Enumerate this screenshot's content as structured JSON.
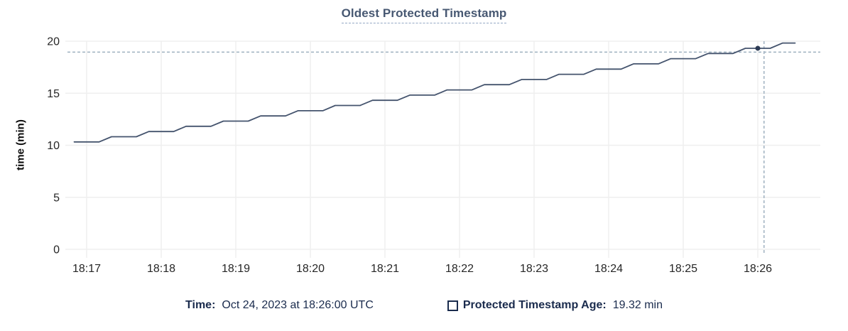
{
  "chart": {
    "title": "Oldest Protected Timestamp"
  },
  "tooltip": {
    "time_label": "Time:",
    "time_value": "Oct 24, 2023 at 18:26:00 UTC",
    "series_label": "Protected Timestamp Age:",
    "series_value": "19.32 min"
  },
  "colors": {
    "line": "#44536d",
    "dot": "#2c3a54",
    "crosshair": "#9fb1c0",
    "grid": "#efefef",
    "title": "#475872",
    "legend_text": "#1a2b4d",
    "tick_text": "#262626"
  },
  "chart_data": {
    "type": "line",
    "title": "Oldest Protected Timestamp",
    "xlabel": "",
    "ylabel": "time (min)",
    "ylim": [
      0,
      20
    ],
    "y_ticks": [
      0,
      5,
      10,
      15,
      20
    ],
    "x_ticks": [
      "18:17",
      "18:18",
      "18:19",
      "18:20",
      "18:21",
      "18:22",
      "18:23",
      "18:24",
      "18:25",
      "18:26"
    ],
    "xlim": [
      "18:16:45",
      "18:26:50"
    ],
    "grid": true,
    "legend_position": "bottom",
    "series": [
      {
        "name": "Protected Timestamp Age",
        "unit": "min",
        "points": [
          [
            "18:16:50",
            10.32
          ],
          [
            "18:17:00",
            10.32
          ],
          [
            "18:17:10",
            10.32
          ],
          [
            "18:17:20",
            10.82
          ],
          [
            "18:17:30",
            10.82
          ],
          [
            "18:17:40",
            10.82
          ],
          [
            "18:17:50",
            11.32
          ],
          [
            "18:18:00",
            11.32
          ],
          [
            "18:18:10",
            11.32
          ],
          [
            "18:18:20",
            11.82
          ],
          [
            "18:18:30",
            11.82
          ],
          [
            "18:18:40",
            11.82
          ],
          [
            "18:18:50",
            12.32
          ],
          [
            "18:19:00",
            12.32
          ],
          [
            "18:19:10",
            12.32
          ],
          [
            "18:19:20",
            12.82
          ],
          [
            "18:19:30",
            12.82
          ],
          [
            "18:19:40",
            12.82
          ],
          [
            "18:19:50",
            13.32
          ],
          [
            "18:20:00",
            13.32
          ],
          [
            "18:20:10",
            13.32
          ],
          [
            "18:20:20",
            13.82
          ],
          [
            "18:20:30",
            13.82
          ],
          [
            "18:20:40",
            13.82
          ],
          [
            "18:20:50",
            14.32
          ],
          [
            "18:21:00",
            14.32
          ],
          [
            "18:21:10",
            14.32
          ],
          [
            "18:21:20",
            14.82
          ],
          [
            "18:21:30",
            14.82
          ],
          [
            "18:21:40",
            14.82
          ],
          [
            "18:21:50",
            15.32
          ],
          [
            "18:22:00",
            15.32
          ],
          [
            "18:22:10",
            15.32
          ],
          [
            "18:22:20",
            15.82
          ],
          [
            "18:22:30",
            15.82
          ],
          [
            "18:22:40",
            15.82
          ],
          [
            "18:22:50",
            16.32
          ],
          [
            "18:23:00",
            16.32
          ],
          [
            "18:23:10",
            16.32
          ],
          [
            "18:23:20",
            16.82
          ],
          [
            "18:23:30",
            16.82
          ],
          [
            "18:23:40",
            16.82
          ],
          [
            "18:23:50",
            17.32
          ],
          [
            "18:24:00",
            17.32
          ],
          [
            "18:24:10",
            17.32
          ],
          [
            "18:24:20",
            17.82
          ],
          [
            "18:24:30",
            17.82
          ],
          [
            "18:24:40",
            17.82
          ],
          [
            "18:24:50",
            18.32
          ],
          [
            "18:25:00",
            18.32
          ],
          [
            "18:25:10",
            18.32
          ],
          [
            "18:25:20",
            18.82
          ],
          [
            "18:25:30",
            18.82
          ],
          [
            "18:25:40",
            18.82
          ],
          [
            "18:25:50",
            19.32
          ],
          [
            "18:26:00",
            19.32
          ],
          [
            "18:26:10",
            19.32
          ],
          [
            "18:26:20",
            19.82
          ],
          [
            "18:26:30",
            19.82
          ]
        ]
      }
    ],
    "hover": {
      "mouse_time": "18:26:05",
      "mouse_value": 18.95,
      "point_time": "18:26:00",
      "point_value": 19.32
    }
  }
}
